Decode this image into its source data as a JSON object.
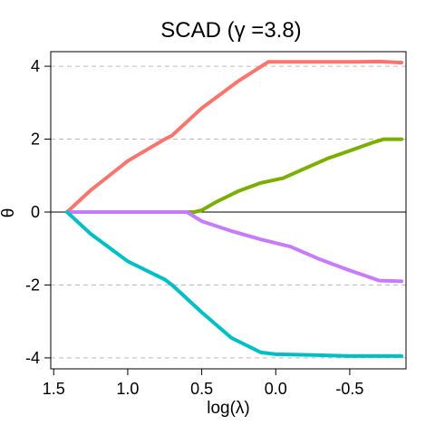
{
  "chart_data": {
    "type": "line",
    "title": "SCAD  (γ =3.8)",
    "xlabel": "log(λ)",
    "ylabel": "θ",
    "x_reversed": true,
    "xlim": [
      1.52,
      -0.88
    ],
    "ylim": [
      -4.3,
      4.4
    ],
    "xticks": [
      1.5,
      1.0,
      0.5,
      0.0,
      -0.5
    ],
    "xtick_labels": [
      "1.5",
      "1.0",
      "0.5",
      "0.0",
      "-0.5"
    ],
    "yticks": [
      -4,
      -2,
      0,
      2,
      4
    ],
    "ytick_labels": [
      "-4",
      "-2",
      "0",
      "2",
      "4"
    ],
    "grid": "dashed horizontal at y ticks",
    "zero_line": true,
    "legend": "none",
    "series": [
      {
        "color": "#f8766d",
        "x": [
          1.41,
          1.25,
          1.0,
          0.75,
          0.7,
          0.5,
          0.25,
          0.05,
          -0.3,
          -0.55,
          -0.7,
          -0.85
        ],
        "y": [
          0.0,
          0.6,
          1.4,
          2.0,
          2.1,
          2.85,
          3.6,
          4.12,
          4.12,
          4.12,
          4.13,
          4.1
        ]
      },
      {
        "color": "#7cae00",
        "x": [
          1.41,
          0.55,
          0.5,
          0.4,
          0.25,
          0.1,
          -0.05,
          -0.2,
          -0.35,
          -0.5,
          -0.65,
          -0.73,
          -0.85
        ],
        "y": [
          0.0,
          0.0,
          0.05,
          0.28,
          0.58,
          0.8,
          0.93,
          1.2,
          1.47,
          1.68,
          1.9,
          2.0,
          2.0
        ]
      },
      {
        "color": "#c77cff",
        "x": [
          1.41,
          0.6,
          0.5,
          0.3,
          0.1,
          -0.1,
          -0.3,
          -0.5,
          -0.7,
          -0.85
        ],
        "y": [
          0.0,
          0.0,
          -0.25,
          -0.52,
          -0.75,
          -0.95,
          -1.3,
          -1.6,
          -1.88,
          -1.9
        ]
      },
      {
        "color": "#00bfc4",
        "x": [
          1.41,
          1.25,
          1.0,
          0.75,
          0.7,
          0.5,
          0.3,
          0.1,
          0.0,
          -0.25,
          -0.5,
          -0.85
        ],
        "y": [
          0.0,
          -0.6,
          -1.35,
          -1.85,
          -2.0,
          -2.75,
          -3.45,
          -3.85,
          -3.9,
          -3.92,
          -3.95,
          -3.95
        ]
      }
    ]
  }
}
